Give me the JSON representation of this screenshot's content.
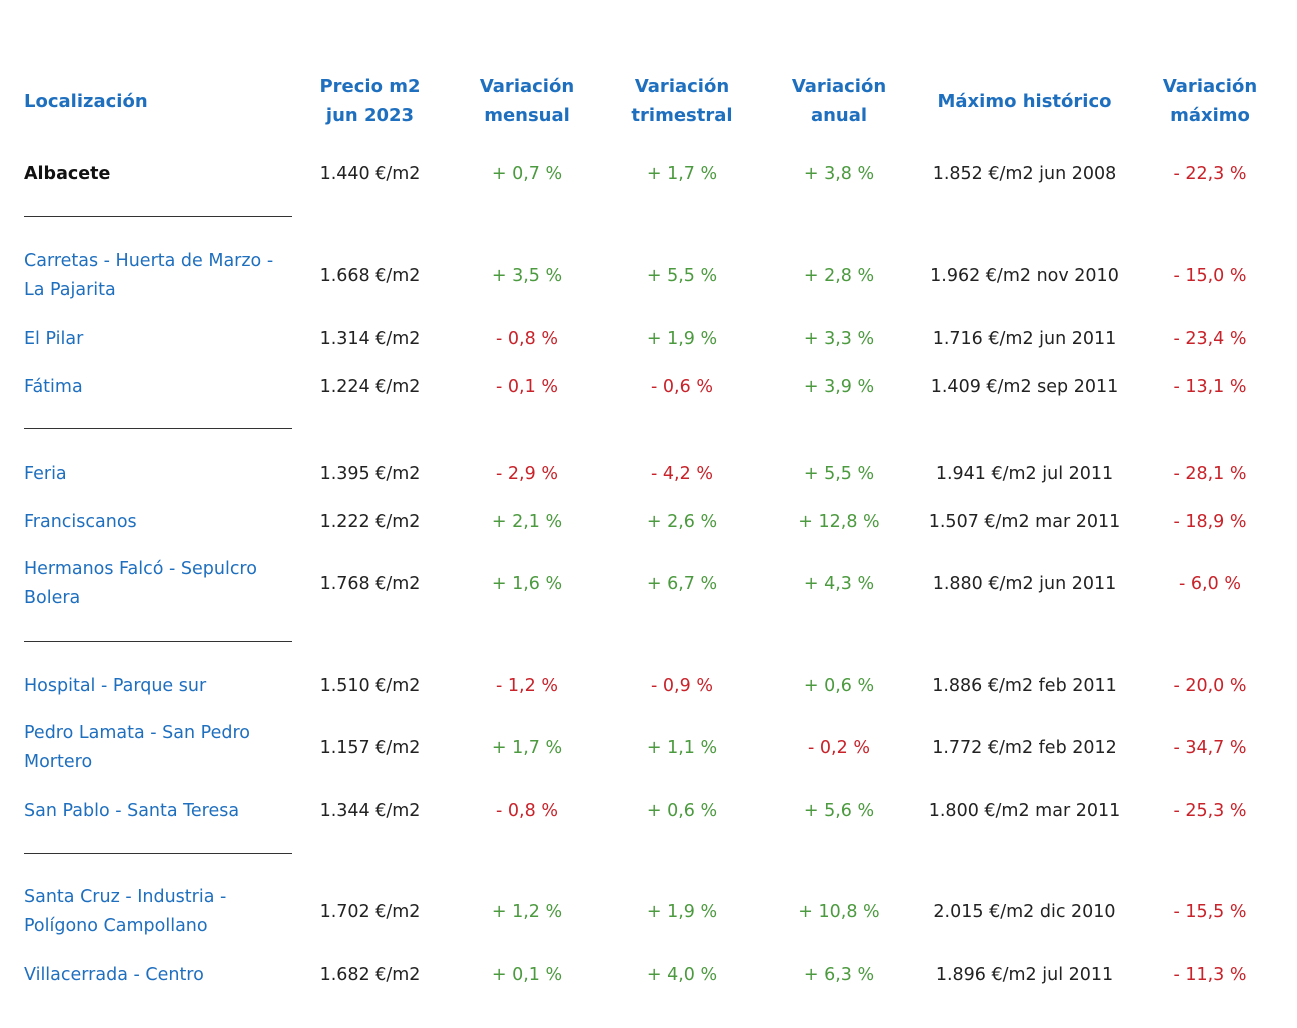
{
  "headers": {
    "location": "Localización",
    "price_l1": "Precio m2",
    "price_l2": "jun 2023",
    "monthly_l1": "Variación",
    "monthly_l2": "mensual",
    "quarterly_l1": "Variación",
    "quarterly_l2": "trimestral",
    "annual_l1": "Variación",
    "annual_l2": "anual",
    "max": "Máximo histórico",
    "var_max_l1": "Variación",
    "var_max_l2": "máximo"
  },
  "colors": {
    "header_blue": "#1f6fbf",
    "positive_green": "#4c9a3f",
    "negative_red": "#c8232a"
  },
  "rows": [
    {
      "loc_l1": "Albacete",
      "loc_l2": "",
      "price": "1.440 €/m2",
      "monthly": "+ 0,7 %",
      "quarterly": "+ 1,7 %",
      "annual": "+ 3,8 %",
      "max": "1.852 €/m2 jun 2008",
      "var_max": "- 22,3 %"
    },
    {
      "loc_l1": "Carretas - Huerta de Marzo -",
      "loc_l2": "La Pajarita",
      "price": "1.668 €/m2",
      "monthly": "+ 3,5 %",
      "quarterly": "+ 5,5 %",
      "annual": "+ 2,8 %",
      "max": "1.962 €/m2 nov 2010",
      "var_max": "- 15,0 %"
    },
    {
      "loc_l1": "El Pilar",
      "loc_l2": "",
      "price": "1.314 €/m2",
      "monthly": "- 0,8 %",
      "quarterly": "+ 1,9 %",
      "annual": "+ 3,3 %",
      "max": "1.716 €/m2 jun 2011",
      "var_max": "- 23,4 %"
    },
    {
      "loc_l1": "Fátima",
      "loc_l2": "",
      "price": "1.224 €/m2",
      "monthly": "- 0,1 %",
      "quarterly": "- 0,6 %",
      "annual": "+ 3,9 %",
      "max": "1.409 €/m2 sep 2011",
      "var_max": "- 13,1 %"
    },
    {
      "loc_l1": "Feria",
      "loc_l2": "",
      "price": "1.395 €/m2",
      "monthly": "- 2,9 %",
      "quarterly": "- 4,2 %",
      "annual": "+ 5,5 %",
      "max": "1.941 €/m2 jul 2011",
      "var_max": "- 28,1 %"
    },
    {
      "loc_l1": "Franciscanos",
      "loc_l2": "",
      "price": "1.222 €/m2",
      "monthly": "+ 2,1 %",
      "quarterly": "+ 2,6 %",
      "annual": "+ 12,8 %",
      "max": "1.507 €/m2 mar 2011",
      "var_max": "- 18,9 %"
    },
    {
      "loc_l1": "Hermanos Falcó - Sepulcro",
      "loc_l2": "Bolera",
      "price": "1.768 €/m2",
      "monthly": "+ 1,6 %",
      "quarterly": "+ 6,7 %",
      "annual": "+ 4,3 %",
      "max": "1.880 €/m2 jun 2011",
      "var_max": "- 6,0 %"
    },
    {
      "loc_l1": "Hospital - Parque sur",
      "loc_l2": "",
      "price": "1.510 €/m2",
      "monthly": "- 1,2 %",
      "quarterly": "- 0,9 %",
      "annual": "+ 0,6 %",
      "max": "1.886 €/m2 feb 2011",
      "var_max": "- 20,0 %"
    },
    {
      "loc_l1": "Pedro Lamata - San Pedro",
      "loc_l2": "Mortero",
      "price": "1.157 €/m2",
      "monthly": "+ 1,7 %",
      "quarterly": "+ 1,1 %",
      "annual": "- 0,2 %",
      "max": "1.772 €/m2 feb 2012",
      "var_max": "- 34,7 %"
    },
    {
      "loc_l1": "San Pablo - Santa Teresa",
      "loc_l2": "",
      "price": "1.344 €/m2",
      "monthly": "- 0,8 %",
      "quarterly": "+ 0,6 %",
      "annual": "+ 5,6 %",
      "max": "1.800 €/m2 mar 2011",
      "var_max": "- 25,3 %"
    },
    {
      "loc_l1": "Santa Cruz - Industria -",
      "loc_l2": "Polígono Campollano",
      "price": "1.702 €/m2",
      "monthly": "+ 1,2 %",
      "quarterly": "+ 1,9 %",
      "annual": "+ 10,8 %",
      "max": "2.015 €/m2 dic 2010",
      "var_max": "- 15,5 %"
    },
    {
      "loc_l1": "Villacerrada - Centro",
      "loc_l2": "",
      "price": "1.682 €/m2",
      "monthly": "+ 0,1 %",
      "quarterly": "+ 4,0 %",
      "annual": "+ 6,3 %",
      "max": "1.896 €/m2 jul 2011",
      "var_max": "- 11,3 %"
    }
  ]
}
